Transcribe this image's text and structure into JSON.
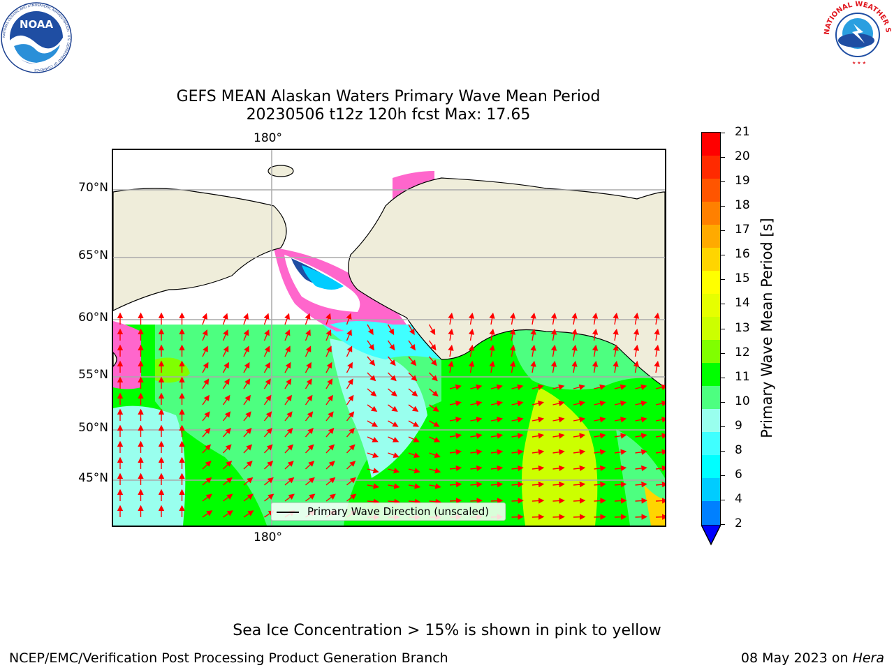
{
  "title_line1": "GEFS MEAN Alaskan Waters Primary Wave Mean Period",
  "title_line2": "20230506 t12z 120h fcst   Max: 17.65",
  "map": {
    "lon_label": "180°",
    "lat_labels": [
      "70°N",
      "65°N",
      "60°N",
      "55°N",
      "50°N",
      "45°N"
    ],
    "legend": "Primary Wave Direction (unscaled)",
    "land_color": "#efedda",
    "ice_note_colors": [
      "#ff66cc",
      "#ff00ff",
      "#ffaa55",
      "#ffff66"
    ]
  },
  "colorbar": {
    "label": "Primary Wave Mean Period [s]",
    "ticks": [
      "21",
      "20",
      "19",
      "18",
      "17",
      "16",
      "15",
      "14",
      "13",
      "12",
      "11",
      "10",
      "9",
      "8",
      "6",
      "4",
      "2"
    ],
    "colors": [
      "#ff0000",
      "#ff2a00",
      "#ff5500",
      "#ff8000",
      "#ffaa00",
      "#ffd500",
      "#ffff00",
      "#e6ff00",
      "#ccff00",
      "#80ff00",
      "#00ff00",
      "#4dff80",
      "#99ffee",
      "#40ffff",
      "#00ffff",
      "#00ccff",
      "#0080ff"
    ],
    "under_color": "#0000ff"
  },
  "footer": {
    "ice_note": "Sea Ice Concentration > 15% is shown in pink to yellow",
    "credit": "NCEP/EMC/Verification Post Processing Product Generation Branch",
    "date": "08 May 2023 on ",
    "machine": "Hera"
  },
  "logos": {
    "noaa_text": "NOAA",
    "noaa_ring": "NATIONAL OCEANIC AND ATMOSPHERIC ADMINISTRATION · U.S. DEPARTMENT OF COMMERCE",
    "nws_ring": "NATIONAL WEATHER SERVICE"
  }
}
